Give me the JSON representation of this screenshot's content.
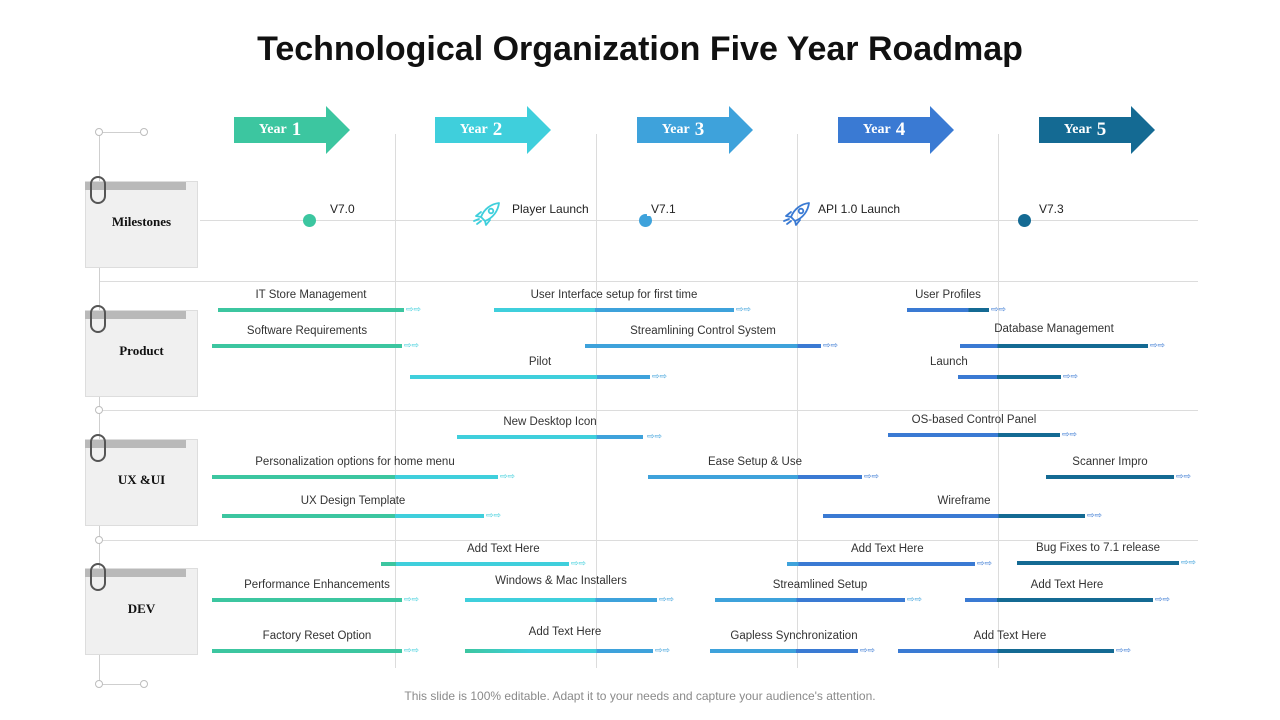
{
  "title": "Technological Organization Five Year Roadmap",
  "years": [
    {
      "label": "Year",
      "num": "1",
      "color": "#3cc6a0"
    },
    {
      "label": "Year",
      "num": "2",
      "color": "#3fcfdc"
    },
    {
      "label": "Year",
      "num": "3",
      "color": "#3ea2db"
    },
    {
      "label": "Year",
      "num": "4",
      "color": "#3a7ad3"
    },
    {
      "label": "Year",
      "num": "5",
      "color": "#146a93"
    }
  ],
  "rows": [
    {
      "label": "Milestones"
    },
    {
      "label": "Product"
    },
    {
      "label": "UX &UI"
    },
    {
      "label": "DEV"
    }
  ],
  "milestones": [
    {
      "text": "V7.0",
      "marker": "dot",
      "color": "#3cc6a0"
    },
    {
      "text": "Player Launch",
      "marker": "rocket-icon",
      "color": "#3fcfdc"
    },
    {
      "text": "V7.1",
      "marker": "dot",
      "color": "#3ea2db"
    },
    {
      "text": "API 1.0 Launch",
      "marker": "rocket-icon",
      "color": "#3a7ad3"
    },
    {
      "text": "V7.3",
      "marker": "dot",
      "color": "#146a93"
    }
  ],
  "arrow_glyph": "⇨⇨",
  "tasks": {
    "product": [
      {
        "label": "IT Store Management"
      },
      {
        "label": "User Interface setup for first time"
      },
      {
        "label": "User Profiles"
      },
      {
        "label": "Software Requirements"
      },
      {
        "label": "Streamlining Control System"
      },
      {
        "label": "Database Management"
      },
      {
        "label": "Pilot"
      },
      {
        "label": "Launch"
      }
    ],
    "ux": [
      {
        "label": "New Desktop Icon"
      },
      {
        "label": "OS-based Control Panel"
      },
      {
        "label": "Personalization options for home menu"
      },
      {
        "label": "Ease Setup & Use"
      },
      {
        "label": "Scanner Impro"
      },
      {
        "label": "UX Design Template"
      },
      {
        "label": "Wireframe"
      }
    ],
    "dev": [
      {
        "label": "Add Text Here"
      },
      {
        "label": "Add Text Here"
      },
      {
        "label": "Bug Fixes to 7.1 release"
      },
      {
        "label": "Performance Enhancements"
      },
      {
        "label": "Windows & Mac Installers"
      },
      {
        "label": "Streamlined Setup"
      },
      {
        "label": "Add Text Here"
      },
      {
        "label": "Factory Reset Option"
      },
      {
        "label": "Add Text Here"
      },
      {
        "label": "Gapless Synchronization"
      },
      {
        "label": "Add Text Here"
      }
    ]
  },
  "footer": "This slide is 100% editable. Adapt it to your needs and capture your audience's attention."
}
